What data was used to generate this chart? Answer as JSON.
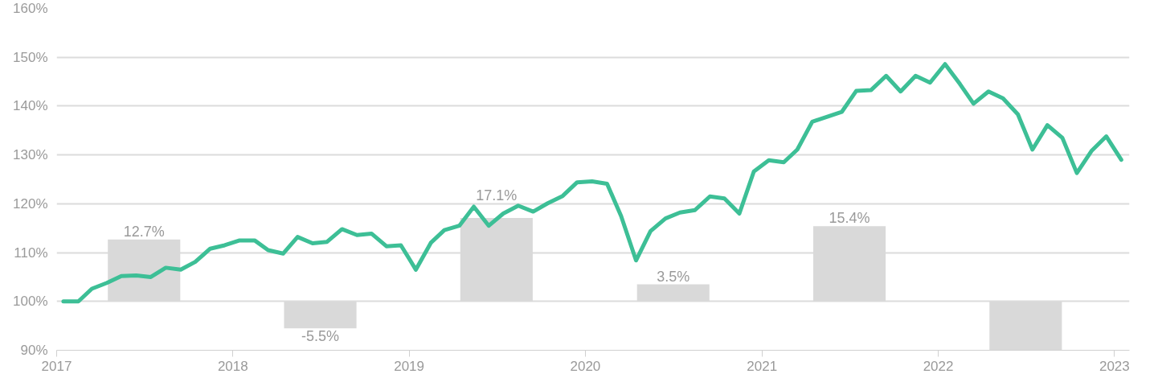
{
  "chart_data": {
    "type": "line",
    "xlim": [
      "2017-01-01",
      "2023-02-01"
    ],
    "ylim": [
      90,
      160
    ],
    "yticks": [
      {
        "value": 90,
        "label": "90%"
      },
      {
        "value": 100,
        "label": "100%"
      },
      {
        "value": 110,
        "label": "110%"
      },
      {
        "value": 120,
        "label": "120%"
      },
      {
        "value": 130,
        "label": "130%"
      },
      {
        "value": 140,
        "label": "140%"
      },
      {
        "value": 150,
        "label": "150%"
      },
      {
        "value": 160,
        "label": "160%"
      }
    ],
    "xticks": [
      {
        "value": "2017-01-01",
        "label": "2017"
      },
      {
        "value": "2018-01-01",
        "label": "2018"
      },
      {
        "value": "2019-01-01",
        "label": "2019"
      },
      {
        "value": "2020-01-01",
        "label": "2020"
      },
      {
        "value": "2021-01-01",
        "label": "2021"
      },
      {
        "value": "2022-01-01",
        "label": "2022"
      },
      {
        "value": "2023-01-01",
        "label": "2023"
      }
    ],
    "grid": "y",
    "series": [
      {
        "type": "bar",
        "color": "#d9d9d9",
        "x": [
          "2017-07-01",
          "2018-07-01",
          "2019-07-01",
          "2020-07-01",
          "2021-07-01",
          "2022-07-01"
        ],
        "base": [
          100,
          100,
          100,
          100,
          100,
          100
        ],
        "values": [
          12.7,
          -5.5,
          17.1,
          3.5,
          15.4,
          -10
        ],
        "value_labels": [
          "12.7%",
          "-5.5%",
          "17.1%",
          "3.5%",
          "15.4%",
          null
        ]
      },
      {
        "type": "line",
        "color": "#3dbf96",
        "x": [
          "2017-01-15",
          "2017-02-15",
          "2017-03-15",
          "2017-04-15",
          "2017-05-15",
          "2017-06-15",
          "2017-07-15",
          "2017-08-15",
          "2017-09-15",
          "2017-10-15",
          "2017-11-15",
          "2017-12-15",
          "2018-01-15",
          "2018-02-15",
          "2018-03-15",
          "2018-04-15",
          "2018-05-15",
          "2018-06-15",
          "2018-07-15",
          "2018-08-15",
          "2018-09-15",
          "2018-10-15",
          "2018-11-15",
          "2018-12-15",
          "2019-01-15",
          "2019-02-15",
          "2019-03-15",
          "2019-04-15",
          "2019-05-15",
          "2019-06-15",
          "2019-07-15",
          "2019-08-15",
          "2019-09-15",
          "2019-10-15",
          "2019-11-15",
          "2019-12-15",
          "2020-01-15",
          "2020-02-15",
          "2020-03-15",
          "2020-04-15",
          "2020-05-15",
          "2020-06-15",
          "2020-07-15",
          "2020-08-15",
          "2020-09-15",
          "2020-10-15",
          "2020-11-15",
          "2020-12-15",
          "2021-01-15",
          "2021-02-15",
          "2021-03-15",
          "2021-04-15",
          "2021-05-15",
          "2021-06-15",
          "2021-07-15",
          "2021-08-15",
          "2021-09-15",
          "2021-10-15",
          "2021-11-15",
          "2021-12-15",
          "2022-01-15",
          "2022-02-15",
          "2022-03-15",
          "2022-04-15",
          "2022-05-15",
          "2022-06-15",
          "2022-07-15",
          "2022-08-15",
          "2022-09-15",
          "2022-10-15",
          "2022-11-15",
          "2022-12-15",
          "2023-01-15"
        ],
        "values": [
          100.0,
          100.0,
          102.6,
          103.8,
          105.2,
          105.3,
          105.0,
          106.9,
          106.5,
          108.1,
          110.8,
          111.5,
          112.5,
          112.5,
          110.5,
          109.8,
          113.2,
          111.9,
          112.2,
          114.8,
          113.6,
          113.9,
          111.3,
          111.5,
          106.5,
          112.0,
          114.6,
          115.5,
          119.4,
          115.5,
          118.0,
          119.6,
          118.4,
          120.1,
          121.6,
          124.4,
          124.6,
          124.1,
          117.5,
          108.4,
          114.4,
          117.0,
          118.2,
          118.7,
          121.5,
          121.1,
          118.0,
          126.6,
          128.9,
          128.5,
          131.1,
          136.8,
          137.8,
          138.8,
          143.1,
          143.3,
          146.2,
          143.0,
          146.2,
          144.8,
          148.6,
          144.5,
          140.5,
          143.0,
          141.6,
          138.3,
          131.1,
          136.1,
          133.5,
          126.3,
          130.9,
          133.8,
          129.0
        ]
      }
    ]
  }
}
